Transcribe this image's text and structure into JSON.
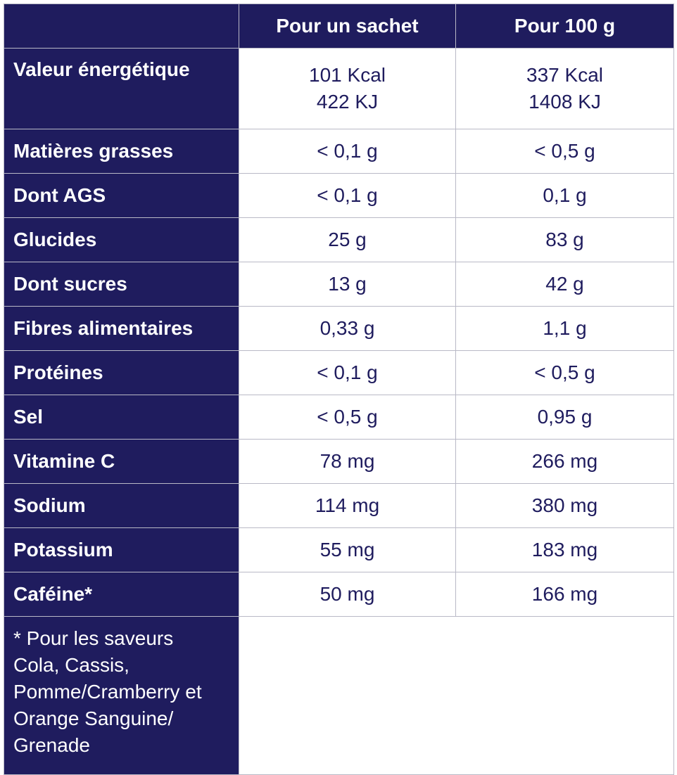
{
  "header": {
    "col_sachet": "Pour un sachet",
    "col_100g": "Pour 100 g"
  },
  "energy": {
    "label": "Valeur énergétique",
    "sachet": [
      "101 Kcal",
      "422 KJ"
    ],
    "per100": [
      "337 Kcal",
      "1408 KJ"
    ]
  },
  "rows": [
    {
      "label": "Matières grasses",
      "sachet": "< 0,1 g",
      "per100": "< 0,5 g"
    },
    {
      "label": "Dont AGS",
      "sachet": "< 0,1 g",
      "per100": "0,1 g"
    },
    {
      "label": "Glucides",
      "sachet": "25 g",
      "per100": "83 g"
    },
    {
      "label": "Dont sucres",
      "sachet": "13 g",
      "per100": "42 g"
    },
    {
      "label": "Fibres alimentaires",
      "sachet": "0,33 g",
      "per100": "1,1 g"
    },
    {
      "label": "Protéines",
      "sachet": "< 0,1 g",
      "per100": "< 0,5 g"
    },
    {
      "label": "Sel",
      "sachet": "< 0,5 g",
      "per100": "0,95 g"
    },
    {
      "label": "Vitamine C",
      "sachet": "78 mg",
      "per100": "266 mg"
    },
    {
      "label": "Sodium",
      "sachet": "114 mg",
      "per100": "380 mg"
    },
    {
      "label": "Potassium",
      "sachet": "55 mg",
      "per100": "183 mg"
    },
    {
      "label": "Caféine*",
      "sachet": "50 mg",
      "per100": "166 mg"
    }
  ],
  "footnote": [
    "* Pour les saveurs",
    "Cola, Cassis,",
    "Pomme/Cramberry et",
    "Orange Sanguine/",
    "Grenade"
  ],
  "colors": {
    "header_bg": "#1f1c5e",
    "value_text": "#1f1c5e",
    "grid": "#b9b9c6"
  }
}
